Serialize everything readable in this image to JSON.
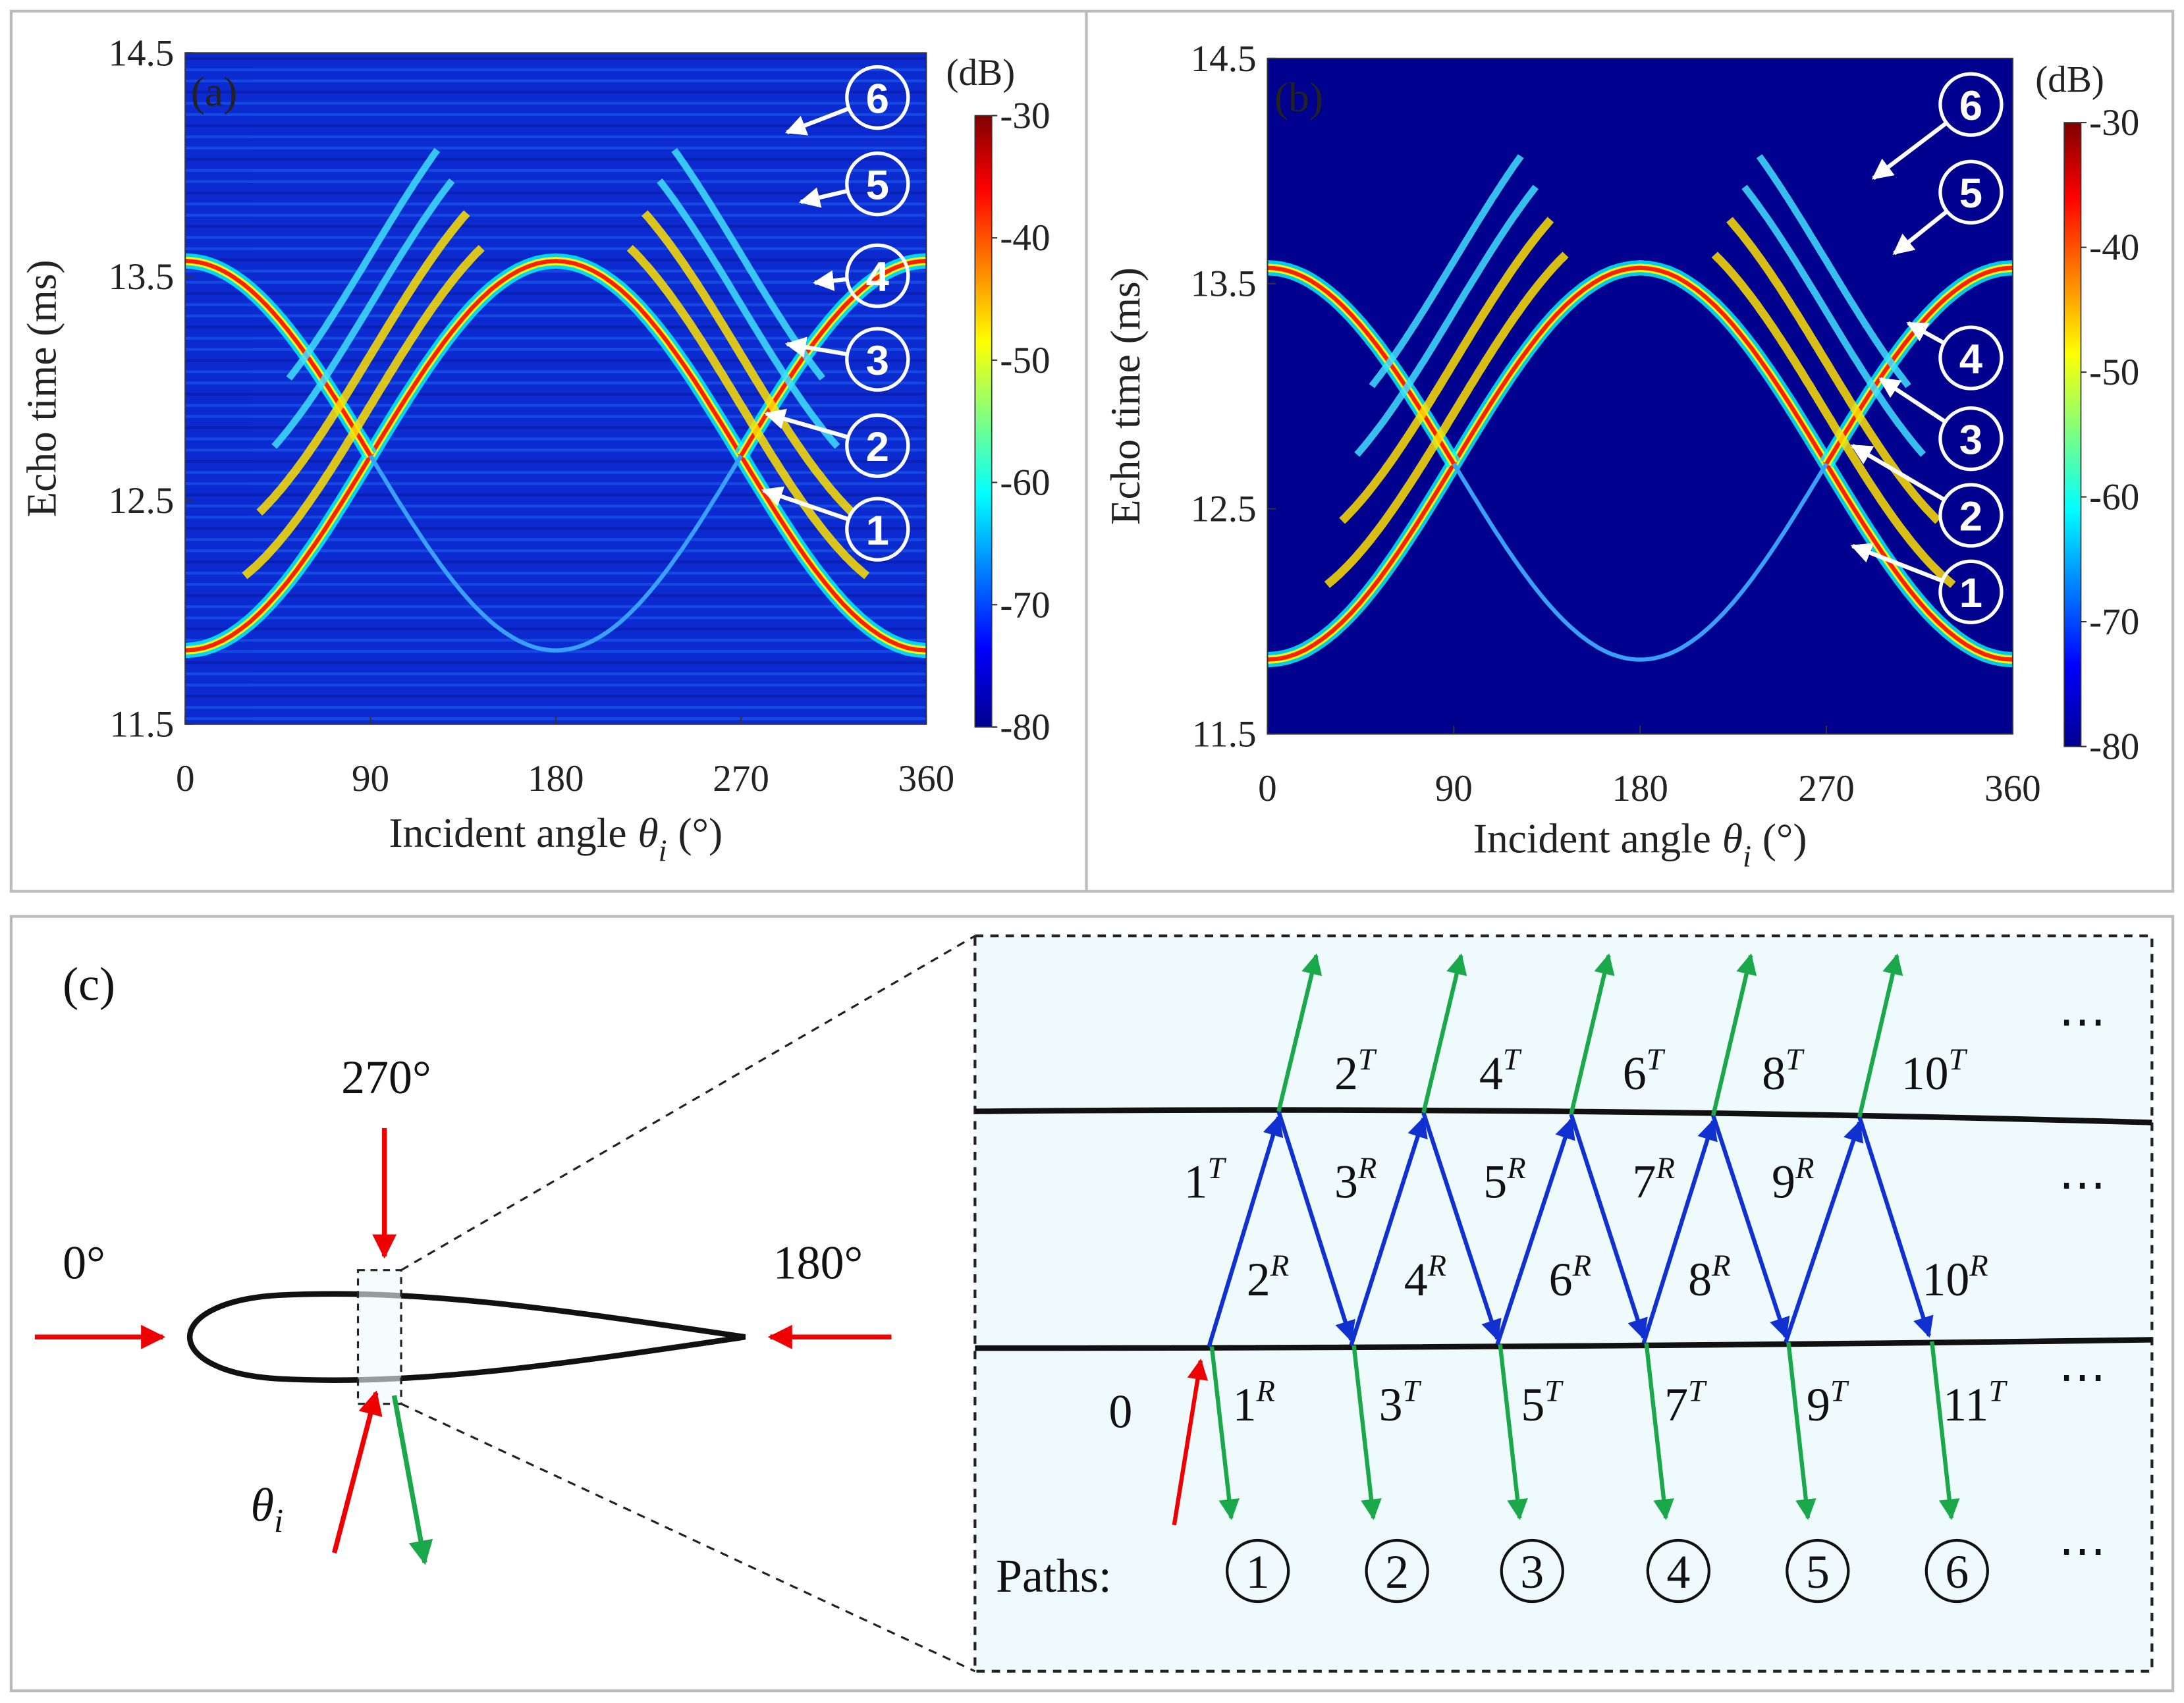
{
  "chart_data": [
    {
      "type": "heatmap",
      "label": "(a)",
      "y_label": "Echo time (ms)",
      "x_label": {
        "text": "Incident angle",
        "symbol": "θ",
        "subscript": "i",
        "unit": "(°)"
      },
      "xlim": [
        0,
        360
      ],
      "ylim": [
        11.5,
        14.5
      ],
      "xticks": [
        0,
        90,
        180,
        270,
        360
      ],
      "yticks": [
        11.5,
        12.5,
        13.5,
        14.5
      ],
      "colorbar": {
        "unit": "(dB)",
        "lim": [
          -80,
          -30
        ],
        "ticks": [
          -30,
          -40,
          -50,
          -60,
          -70,
          -80
        ]
      },
      "path_markers": [
        "6",
        "5",
        "4",
        "3",
        "2",
        "1"
      ]
    },
    {
      "type": "heatmap",
      "label": "(b)",
      "y_label": "Echo time (ms)",
      "x_label": {
        "text": "Incident angle",
        "symbol": "θ",
        "subscript": "i",
        "unit": "(°)"
      },
      "xlim": [
        0,
        360
      ],
      "ylim": [
        11.5,
        14.5
      ],
      "xticks": [
        0,
        90,
        180,
        270,
        360
      ],
      "yticks": [
        11.5,
        12.5,
        13.5,
        14.5
      ],
      "colorbar": {
        "unit": "(dB)",
        "lim": [
          -80,
          -30
        ],
        "ticks": [
          -30,
          -40,
          -50,
          -60,
          -70,
          -80
        ]
      },
      "path_markers": [
        "6",
        "5",
        "4",
        "3",
        "2",
        "1"
      ]
    }
  ],
  "diagram": {
    "label": "(c)",
    "angles": [
      "270°",
      "0°",
      "180°"
    ],
    "incident_symbol": {
      "base": "θ",
      "sub": "i"
    },
    "top_row": [
      {
        "n": "2",
        "s": "T"
      },
      {
        "n": "4",
        "s": "T"
      },
      {
        "n": "6",
        "s": "T"
      },
      {
        "n": "8",
        "s": "T"
      },
      {
        "n": "10",
        "s": "T"
      }
    ],
    "upper_row": [
      {
        "n": "1",
        "s": "T"
      },
      {
        "n": "3",
        "s": "R"
      },
      {
        "n": "5",
        "s": "R"
      },
      {
        "n": "7",
        "s": "R"
      },
      {
        "n": "9",
        "s": "R"
      }
    ],
    "lower_row": [
      {
        "n": "2",
        "s": "R"
      },
      {
        "n": "4",
        "s": "R"
      },
      {
        "n": "6",
        "s": "R"
      },
      {
        "n": "8",
        "s": "R"
      },
      {
        "n": "10",
        "s": "R"
      }
    ],
    "incident": "0",
    "bottom_row": [
      {
        "n": "1",
        "s": "R"
      },
      {
        "n": "3",
        "s": "T"
      },
      {
        "n": "5",
        "s": "T"
      },
      {
        "n": "7",
        "s": "T"
      },
      {
        "n": "9",
        "s": "T"
      },
      {
        "n": "11",
        "s": "T"
      }
    ],
    "ellipsis": "⋯",
    "paths_label": "Paths:",
    "paths": [
      "1",
      "2",
      "3",
      "4",
      "5",
      "6"
    ]
  }
}
